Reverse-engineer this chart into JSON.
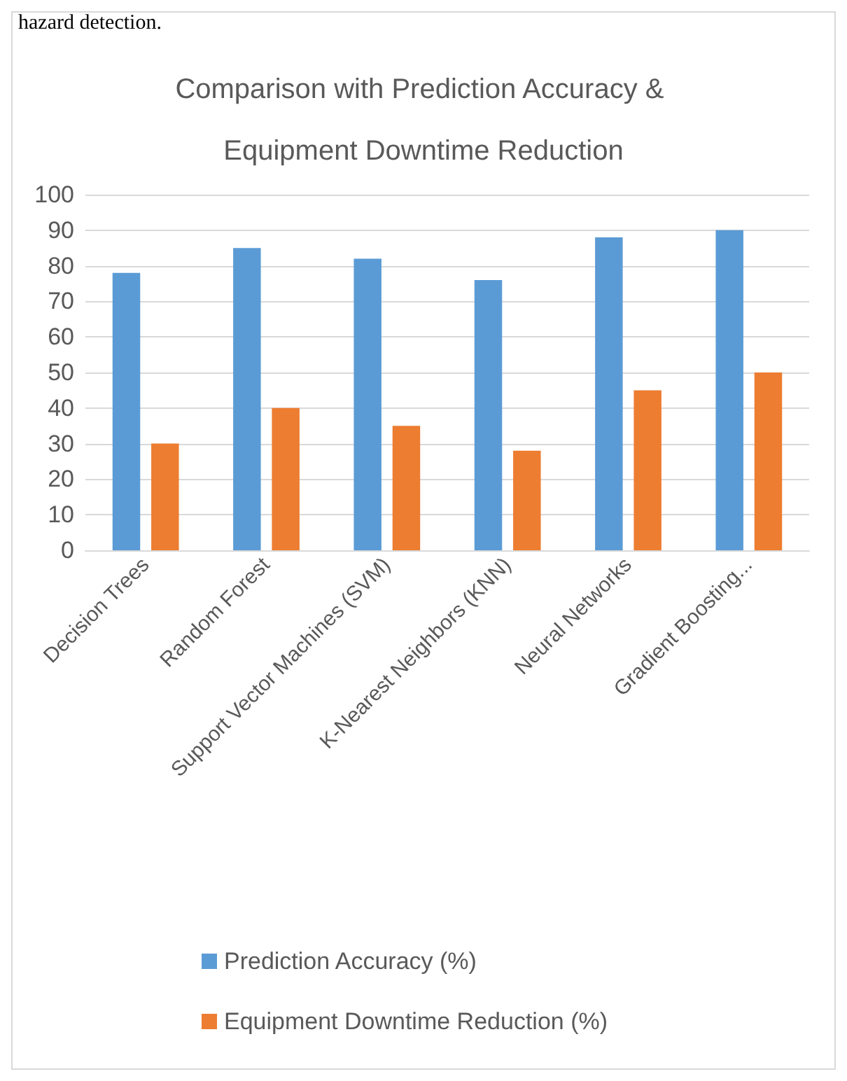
{
  "chart_data": {
    "type": "bar",
    "title": "Comparison with Prediction Accuracy & Equipment Downtime Reduction",
    "annotations": [
      "hazard detection."
    ],
    "categories": [
      "Decision Trees",
      "Random Forest",
      "Support Vector Machines (SVM)",
      "K-Nearest Neighbors (KNN)",
      "Neural Networks",
      "Gradient Boosting..."
    ],
    "series": [
      {
        "name": "Prediction Accuracy (%)",
        "color": "#5b9bd5",
        "values": [
          78,
          85,
          82,
          76,
          88,
          90
        ]
      },
      {
        "name": "Equipment Downtime Reduction (%)",
        "color": "#ed7d31",
        "values": [
          30,
          40,
          35,
          28,
          45,
          50
        ]
      }
    ],
    "ylim": [
      0,
      100
    ],
    "yticks": [
      0,
      10,
      20,
      30,
      40,
      50,
      60,
      70,
      80,
      90,
      100
    ],
    "grid": "y",
    "legend": "bottom"
  }
}
